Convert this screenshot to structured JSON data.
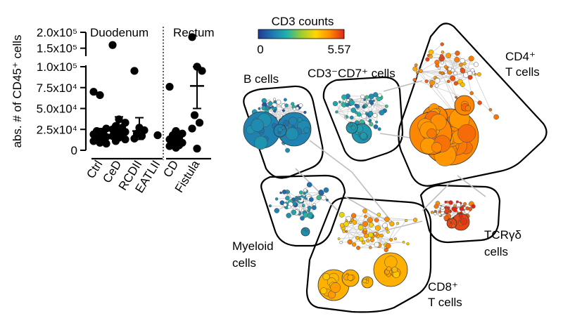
{
  "chart_data": [
    {
      "type": "scatter",
      "ylabel": "abs. # of CD45⁺ cells",
      "y_axis_break": true,
      "ylim_lower": [
        0,
        100000
      ],
      "ylim_upper": [
        125000,
        200000
      ],
      "yticks": [
        {
          "value": 0,
          "label": "0"
        },
        {
          "value": 25000,
          "label": "2.5x10⁴"
        },
        {
          "value": 50000,
          "label": "5.0x10⁴"
        },
        {
          "value": 75000,
          "label": "7.5x10⁴"
        },
        {
          "value": 100000,
          "label": "1.0x10⁵"
        },
        {
          "value": 150000,
          "label": "1.5x10⁵"
        },
        {
          "value": 200000,
          "label": "2.0x10⁵"
        }
      ],
      "groups": [
        {
          "name": "Duodenum",
          "categories": [
            "Ctrl",
            "CeD",
            "RCDII",
            "EATLII"
          ]
        },
        {
          "name": "Rectum",
          "categories": [
            "CD",
            "Fistula"
          ]
        }
      ],
      "series": [
        {
          "category": "Ctrl",
          "values": [
            70000,
            66000,
            26000,
            23000,
            21000,
            19000,
            18000,
            16000,
            14000,
            12000,
            11000,
            9000,
            8000
          ],
          "center": 21000,
          "err_low": 12000,
          "err_high": 26000
        },
        {
          "category": "CeD",
          "values": [
            160000,
            37000,
            33000,
            29000,
            27000,
            25000,
            23000,
            22000,
            20000,
            18000,
            17000,
            15000,
            13000,
            11000
          ],
          "center": 22000,
          "err_low": 14000,
          "err_high": 40000
        },
        {
          "category": "RCDII",
          "values": [
            95000,
            27000,
            24000,
            20000,
            17000,
            14000
          ],
          "center": 23000,
          "err_low": 13000,
          "err_high": 39000
        },
        {
          "category": "EATLII",
          "values": [
            18000
          ],
          "center": null
        },
        {
          "category": "CD",
          "values": [
            76000,
            23000,
            20000,
            18000,
            15000,
            13000,
            11000,
            9000,
            8000,
            6000,
            5000,
            3000
          ],
          "center": 13000,
          "err_low": 6000,
          "err_high": 23000
        },
        {
          "category": "Fistula",
          "values": [
            185000,
            100000,
            95000,
            42000,
            33000,
            26000,
            2000
          ],
          "center": 77000,
          "err_low": 50000,
          "err_high": 100000
        }
      ]
    },
    {
      "type": "network",
      "colorbar": {
        "title": "CD3 counts",
        "min": 0,
        "min_label": "0",
        "max": 5.57,
        "max_label": "5.57",
        "colors": [
          "#1f3a93",
          "#1f78b4",
          "#20b2aa",
          "#9acd32",
          "#ffd700",
          "#ff8c00",
          "#e0261c"
        ]
      },
      "clusters": [
        {
          "id": "bcells",
          "label": "B cells",
          "cd3_level": 1.1
        },
        {
          "id": "cd3cd7",
          "label": "CD3⁻CD7⁺ cells",
          "cd3_level": 1.4
        },
        {
          "id": "cd4",
          "label": "CD4⁺ T cells",
          "cd3_level": 4.7
        },
        {
          "id": "myeloid",
          "label": "Myeloid cells",
          "cd3_level": 1.3
        },
        {
          "id": "cd8",
          "label": "CD8⁺ T cells",
          "cd3_level": 4.2
        },
        {
          "id": "tcrgd",
          "label": "TCRγδ cells",
          "cd3_level": 5.3
        }
      ]
    }
  ]
}
